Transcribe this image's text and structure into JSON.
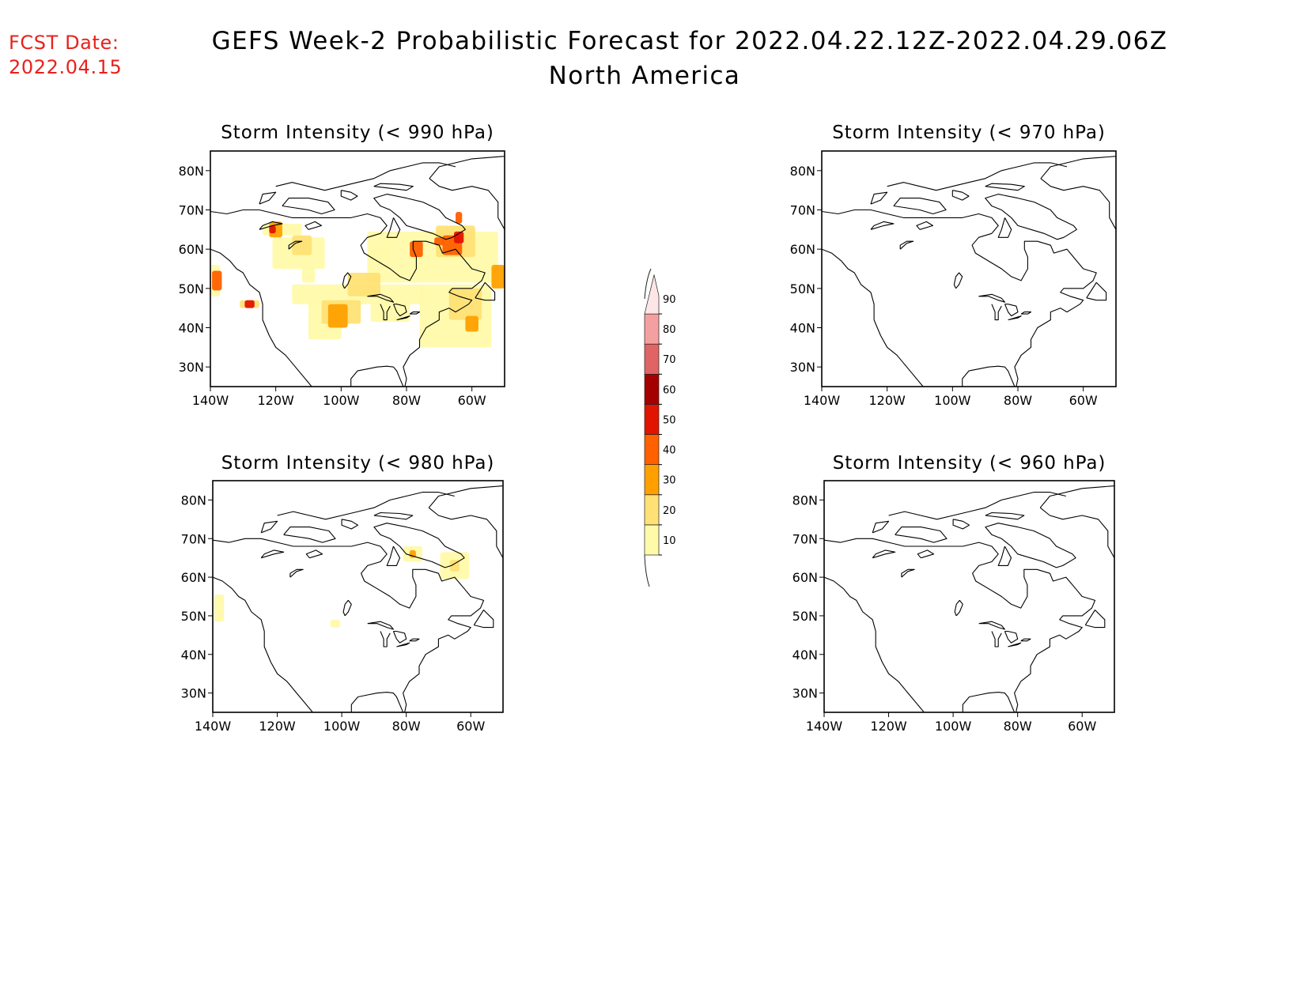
{
  "header": {
    "fcst_label": "FCST Date:",
    "fcst_date": "2022.04.15",
    "title_line1": "GEFS Week-2 Probabilistic Forecast for 2022.04.22.12Z-2022.04.29.06Z",
    "title_line2": "North America"
  },
  "map_extent": {
    "lon": [
      -140,
      -50
    ],
    "lat": [
      25,
      85
    ]
  },
  "axis_ticks": {
    "lat": [
      {
        "value": 80,
        "label": "80N"
      },
      {
        "value": 70,
        "label": "70N"
      },
      {
        "value": 60,
        "label": "60N"
      },
      {
        "value": 50,
        "label": "50N"
      },
      {
        "value": 40,
        "label": "40N"
      },
      {
        "value": 30,
        "label": "30N"
      }
    ],
    "lon": [
      {
        "value": -140,
        "label": "140W"
      },
      {
        "value": -120,
        "label": "120W"
      },
      {
        "value": -100,
        "label": "100W"
      },
      {
        "value": -80,
        "label": "80W"
      },
      {
        "value": -60,
        "label": "60W"
      }
    ]
  },
  "panels": [
    {
      "id": "990",
      "title": "Storm Intensity (< 990 hPa)",
      "probability_cells": [
        {
          "lon": -95,
          "lat": 48.5,
          "w": 40,
          "h": 5,
          "p": 10
        },
        {
          "lon": -85,
          "lat": 44,
          "w": 12,
          "h": 5,
          "p": 12
        },
        {
          "lon": -65,
          "lat": 43,
          "w": 22,
          "h": 16,
          "p": 15
        },
        {
          "lon": -72,
          "lat": 58,
          "w": 40,
          "h": 13,
          "p": 12
        },
        {
          "lon": -113,
          "lat": 59,
          "w": 16,
          "h": 8,
          "p": 10
        },
        {
          "lon": -118,
          "lat": 65,
          "w": 12,
          "h": 3,
          "p": 10
        },
        {
          "lon": -105,
          "lat": 42,
          "w": 10,
          "h": 10,
          "p": 15
        },
        {
          "lon": -110,
          "lat": 53.5,
          "w": 4,
          "h": 4,
          "p": 12
        },
        {
          "lon": -138.5,
          "lat": 52,
          "w": 3,
          "h": 8,
          "p": 15
        },
        {
          "lon": -128,
          "lat": 46,
          "w": 6,
          "h": 2,
          "p": 20
        },
        {
          "lon": -100,
          "lat": 44,
          "w": 12,
          "h": 6,
          "p": 25
        },
        {
          "lon": -93,
          "lat": 51,
          "w": 10,
          "h": 6,
          "p": 22
        },
        {
          "lon": -65,
          "lat": 62,
          "w": 12,
          "h": 8,
          "p": 25
        },
        {
          "lon": -62,
          "lat": 46,
          "w": 10,
          "h": 8,
          "p": 22
        },
        {
          "lon": -112,
          "lat": 61,
          "w": 6,
          "h": 5,
          "p": 28
        },
        {
          "lon": -120,
          "lat": 65,
          "w": 4,
          "h": 4,
          "p": 35
        },
        {
          "lon": -101,
          "lat": 43,
          "w": 6,
          "h": 6,
          "p": 35
        },
        {
          "lon": -66,
          "lat": 61,
          "w": 6,
          "h": 5,
          "p": 40
        },
        {
          "lon": -77,
          "lat": 60,
          "w": 4,
          "h": 4,
          "p": 40
        },
        {
          "lon": -60,
          "lat": 41,
          "w": 4,
          "h": 4,
          "p": 35
        },
        {
          "lon": -52,
          "lat": 53,
          "w": 4,
          "h": 6,
          "p": 30
        },
        {
          "lon": -138,
          "lat": 52,
          "w": 3,
          "h": 5,
          "p": 40
        },
        {
          "lon": -128,
          "lat": 46,
          "w": 3,
          "h": 2,
          "p": 50
        },
        {
          "lon": -64,
          "lat": 63,
          "w": 3,
          "h": 3,
          "p": 50
        },
        {
          "lon": -121,
          "lat": 65,
          "w": 2,
          "h": 2,
          "p": 55
        },
        {
          "lon": -70,
          "lat": 62,
          "w": 3,
          "h": 2,
          "p": 45
        },
        {
          "lon": -64,
          "lat": 68,
          "w": 2,
          "h": 3,
          "p": 40
        },
        {
          "lon": -88,
          "lat": 58.5,
          "w": 6,
          "h": 4,
          "p": 15
        }
      ]
    },
    {
      "id": "970",
      "title": "Storm Intensity (< 970 hPa)",
      "probability_cells": []
    },
    {
      "id": "980",
      "title": "Storm Intensity (< 980 hPa)",
      "probability_cells": [
        {
          "lon": -78,
          "lat": 66,
          "w": 6,
          "h": 4,
          "p": 15
        },
        {
          "lon": -78,
          "lat": 66,
          "w": 2,
          "h": 2,
          "p": 30
        },
        {
          "lon": -65,
          "lat": 63,
          "w": 9,
          "h": 7,
          "p": 15
        },
        {
          "lon": -65,
          "lat": 63,
          "w": 3,
          "h": 3,
          "p": 25
        },
        {
          "lon": -138,
          "lat": 52,
          "w": 3,
          "h": 7,
          "p": 12
        },
        {
          "lon": -102,
          "lat": 48,
          "w": 3,
          "h": 2,
          "p": 12
        }
      ]
    },
    {
      "id": "960",
      "title": "Storm Intensity (< 960 hPa)",
      "probability_cells": []
    }
  ],
  "colorbar": {
    "levels": [
      10,
      20,
      30,
      40,
      50,
      60,
      70,
      80,
      90
    ],
    "labels": [
      "10",
      "20",
      "30",
      "40",
      "50",
      "60",
      "70",
      "80",
      "90"
    ],
    "colors": [
      "#fffaaa",
      "#ffe175",
      "#ffa000",
      "#ff6000",
      "#e11400",
      "#a50000",
      "#e16464",
      "#f5a0a0",
      "#ffe6e6"
    ]
  }
}
